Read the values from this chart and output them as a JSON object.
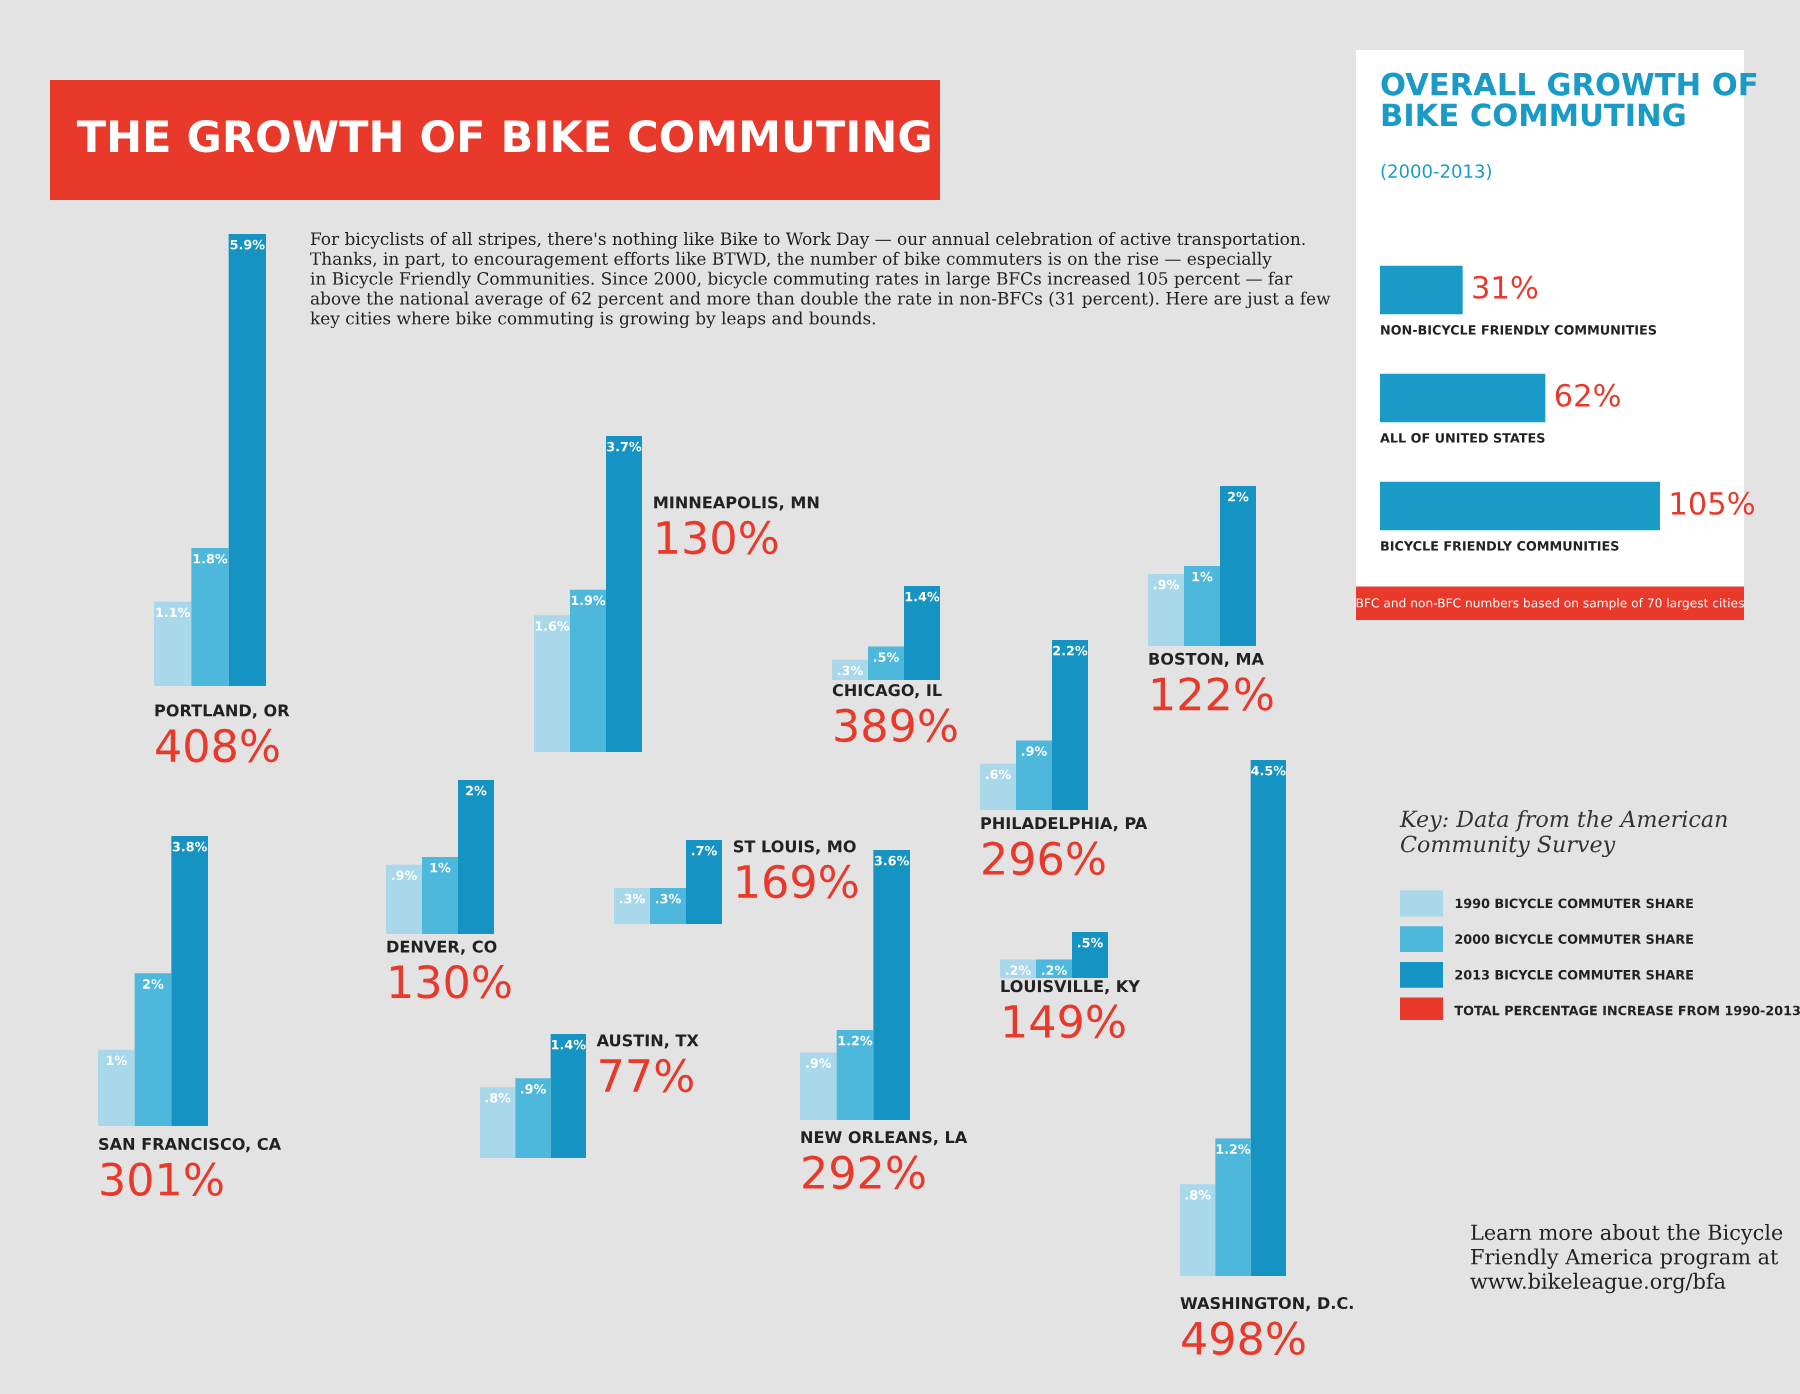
{
  "chart_data": [
    {
      "type": "other",
      "title": "THE GROWTH OF BIKE COMMUTING",
      "annotations": [
        "For bicyclists of all stripes, there's nothing like Bike to Work Day — our annual celebration of active transportation.\nThanks, in part, to encouragement efforts like BTWD, the number of bike commuters is on the rise — especially\nin Bicycle Friendly Communities. Since 2000, bicycle commuting rates in large BFCs increased 105 percent — far\nabove the national average of 62 percent and more than double the rate in non-BFCs (31 percent). Here are just a few\nkey cities where bike commuting is growing by leaps and bounds.",
        "Learn more about the Bicycle\nFriendly America program at\nwww.bikeleague.org/bfa"
      ]
    },
    {
      "type": "bar",
      "orientation": "horizontal",
      "title": "OVERALL GROWTH OF\nBIKE COMMUTING",
      "subtitle": "(2000-2013)",
      "categories": [
        "NON-BICYCLE FRIENDLY COMMUNITIES",
        "ALL OF UNITED STATES",
        "BICYCLE FRIENDLY COMMUNITIES"
      ],
      "values": [
        31,
        62,
        105
      ],
      "value_labels": [
        "31%",
        "62%",
        "105%"
      ],
      "color": "#1a9bc7",
      "annotations": [
        "BFC and non-BFC numbers based on sample of 70 largest cities"
      ]
    },
    {
      "type": "bar",
      "xlabel": "PORTLAND, OR",
      "annotations": [
        "408%"
      ],
      "categories": [
        null,
        null,
        null
      ],
      "values": [
        1.1,
        1.8,
        5.9
      ],
      "value_labels": [
        "1.1%",
        "1.8%",
        "5.9%"
      ],
      "colors": [
        "#a8d8ea",
        "#4db8dc",
        "#1594c4"
      ]
    },
    {
      "type": "bar",
      "xlabel": "MINNEAPOLIS, MN",
      "annotations": [
        "130%"
      ],
      "categories": [
        null,
        null,
        null
      ],
      "values": [
        1.6,
        1.9,
        3.7
      ],
      "value_labels": [
        "1.6%",
        "1.9%",
        "3.7%"
      ],
      "colors": [
        "#a8d8ea",
        "#4db8dc",
        "#1594c4"
      ]
    },
    {
      "type": "bar",
      "xlabel": "BOSTON, MA",
      "annotations": [
        "122%"
      ],
      "categories": [
        null,
        null,
        null
      ],
      "values": [
        0.9,
        1,
        2
      ],
      "value_labels": [
        ".9%",
        "1%",
        "2%"
      ],
      "colors": [
        "#a8d8ea",
        "#4db8dc",
        "#1594c4"
      ]
    },
    {
      "type": "bar",
      "xlabel": "CHICAGO, IL",
      "annotations": [
        "389%"
      ],
      "categories": [
        null,
        null,
        null
      ],
      "values": [
        0.3,
        0.5,
        1.4
      ],
      "value_labels": [
        ".3%",
        ".5%",
        "1.4%"
      ],
      "colors": [
        "#a8d8ea",
        "#4db8dc",
        "#1594c4"
      ]
    },
    {
      "type": "bar",
      "xlabel": "PHILADELPHIA, PA",
      "annotations": [
        "296%"
      ],
      "categories": [
        null,
        null,
        null
      ],
      "values": [
        0.6,
        0.9,
        2.2
      ],
      "value_labels": [
        ".6%",
        ".9%",
        "2.2%"
      ],
      "colors": [
        "#a8d8ea",
        "#4db8dc",
        "#1594c4"
      ]
    },
    {
      "type": "bar",
      "xlabel": "WASHINGTON, D.C.",
      "annotations": [
        "498%"
      ],
      "categories": [
        null,
        null,
        null
      ],
      "values": [
        0.8,
        1.2,
        4.5
      ],
      "value_labels": [
        ".8%",
        "1.2%",
        "4.5%"
      ],
      "colors": [
        "#a8d8ea",
        "#4db8dc",
        "#1594c4"
      ]
    },
    {
      "type": "bar",
      "xlabel": "DENVER, CO",
      "annotations": [
        "130%"
      ],
      "categories": [
        null,
        null,
        null
      ],
      "values": [
        0.9,
        1,
        2
      ],
      "value_labels": [
        ".9%",
        "1%",
        "2%"
      ],
      "colors": [
        "#a8d8ea",
        "#4db8dc",
        "#1594c4"
      ]
    },
    {
      "type": "other",
      "title": "Key: Data from the American\nCommunity Survey",
      "annotations": [
        "1990 BICYCLE COMMUTER SHARE",
        "2000 BICYCLE COMMUTER SHARE",
        "2013 BICYCLE COMMUTER SHARE",
        "TOTAL PERCENTAGE INCREASE FROM 1990-2013"
      ],
      "colors": [
        "#a8d8ea",
        "#4db8dc",
        "#1594c4",
        "#e8392b"
      ]
    },
    {
      "type": "bar",
      "xlabel": "SAN FRANCISCO, CA",
      "annotations": [
        "301%"
      ],
      "categories": [
        null,
        null,
        null
      ],
      "values": [
        1,
        2,
        3.8
      ],
      "value_labels": [
        "1%",
        "2%",
        "3.8%"
      ],
      "colors": [
        "#a8d8ea",
        "#4db8dc",
        "#1594c4"
      ]
    },
    {
      "type": "bar",
      "xlabel": "ST LOUIS, MO",
      "annotations": [
        "169%"
      ],
      "categories": [
        null,
        null,
        null
      ],
      "values": [
        0.3,
        0.3,
        0.7
      ],
      "value_labels": [
        ".3%",
        ".3%",
        ".7%"
      ],
      "colors": [
        "#a8d8ea",
        "#4db8dc",
        "#1594c4"
      ]
    },
    {
      "type": "bar",
      "xlabel": "NEW ORLEANS, LA",
      "annotations": [
        "292%"
      ],
      "categories": [
        null,
        null,
        null
      ],
      "values": [
        0.9,
        1.2,
        3.6
      ],
      "value_labels": [
        ".9%",
        "1.2%",
        "3.6%"
      ],
      "colors": [
        "#a8d8ea",
        "#4db8dc",
        "#1594c4"
      ]
    },
    {
      "type": "bar",
      "xlabel": "LOUISVILLE, KY",
      "annotations": [
        "149%"
      ],
      "categories": [
        null,
        null,
        null
      ],
      "values": [
        0.2,
        0.2,
        0.5
      ],
      "value_labels": [
        ".2%",
        ".2%",
        ".5%"
      ],
      "colors": [
        "#a8d8ea",
        "#4db8dc",
        "#1594c4"
      ]
    },
    {
      "type": "bar",
      "xlabel": "AUSTIN, TX",
      "annotations": [
        "77%"
      ],
      "categories": [
        null,
        null,
        null
      ],
      "values": [
        0.8,
        0.9,
        1.4
      ],
      "value_labels": [
        ".8%",
        ".9%",
        "1.4%"
      ],
      "colors": [
        "#a8d8ea",
        "#4db8dc",
        "#1594c4"
      ]
    }
  ]
}
